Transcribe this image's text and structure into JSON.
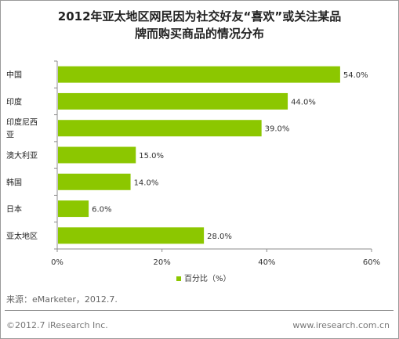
{
  "chart_data": {
    "type": "bar",
    "orientation": "horizontal",
    "title_line1": "2012年亚太地区网民因为社交好友“喜欢”或关注某品",
    "title_line2": "牌而购买商品的情况分布",
    "categories": [
      "中国",
      "印度",
      "印度尼西亚",
      "澳大利亚",
      "韩国",
      "日本",
      "亚太地区"
    ],
    "category_labels": [
      [
        "中国"
      ],
      [
        "印度"
      ],
      [
        "印度尼西",
        "亚"
      ],
      [
        "澳大利亚"
      ],
      [
        "韩国"
      ],
      [
        "日本"
      ],
      [
        "亚太地区"
      ]
    ],
    "values": [
      54.0,
      44.0,
      39.0,
      15.0,
      14.0,
      6.0,
      28.0
    ],
    "value_labels": [
      "54.0%",
      "44.0%",
      "39.0%",
      "15.0%",
      "14.0%",
      "6.0%",
      "28.0%"
    ],
    "xlim": [
      0,
      60
    ],
    "x_ticks": [
      0,
      20,
      40,
      60
    ],
    "x_tick_labels": [
      "0%",
      "20%",
      "40%",
      "60%"
    ],
    "legend": "百分比（%）",
    "legend_placement": "bottom",
    "bar_color": "#8cc700",
    "grid": false
  },
  "source": "来源：eMarketer，2012.7.",
  "footer": {
    "copyright": "©2012.7 iResearch Inc.",
    "website": "www.iresearch.com.cn"
  }
}
